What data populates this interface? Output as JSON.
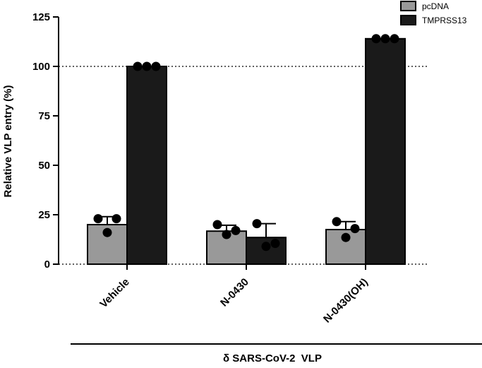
{
  "chart_data": {
    "type": "bar",
    "ylabel": "Relative VLP entry (%)",
    "xlabel": "δ SARS-CoV-2  VLP",
    "ylim": [
      0,
      125
    ],
    "yticks": [
      0,
      25,
      50,
      75,
      100,
      125
    ],
    "reference_lines": [
      0,
      100
    ],
    "categories": [
      "Vehicle",
      "N-0430",
      "N-0430(OH)"
    ],
    "legend_position": "top-right",
    "series": [
      {
        "name": "pcDNA",
        "color": "#999999",
        "values": [
          20,
          16.7,
          17.5
        ],
        "error_plus": [
          4,
          3,
          4
        ],
        "points": [
          [
            23,
            16,
            23
          ],
          [
            20,
            15,
            17
          ],
          [
            21.5,
            13.5,
            18
          ]
        ]
      },
      {
        "name": "TMPRSS13",
        "color": "#1a1a1a",
        "values": [
          100,
          13.5,
          114
        ],
        "error_plus": [
          0,
          7,
          0
        ],
        "points": [
          [
            100,
            100,
            100
          ],
          [
            20.5,
            9,
            10.5
          ],
          [
            114,
            114,
            114
          ]
        ]
      }
    ]
  }
}
